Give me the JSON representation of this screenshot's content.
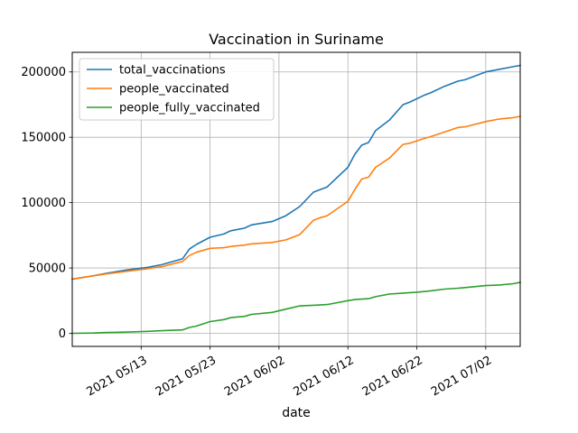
{
  "chart_data": {
    "type": "line",
    "title": "Vaccination in Suriname",
    "xlabel": "date",
    "ylabel": "",
    "grid": true,
    "legend_position": "upper left",
    "xlim": [
      "2021-05-03",
      "2021-07-07"
    ],
    "ylim": [
      -10000,
      215000
    ],
    "x_ticks": [
      {
        "date": "2021-05-13",
        "label": "2021 05/13"
      },
      {
        "date": "2021-05-23",
        "label": "2021 05/23"
      },
      {
        "date": "2021-06-02",
        "label": "2021 06/02"
      },
      {
        "date": "2021-06-12",
        "label": "2021 06/12"
      },
      {
        "date": "2021-06-22",
        "label": "2021 06/22"
      },
      {
        "date": "2021-07-02",
        "label": "2021 07/02"
      }
    ],
    "y_ticks": [
      {
        "value": 0,
        "label": "0"
      },
      {
        "value": 50000,
        "label": "50000"
      },
      {
        "value": 100000,
        "label": "100000"
      },
      {
        "value": 150000,
        "label": "150000"
      },
      {
        "value": 200000,
        "label": "200000"
      }
    ],
    "series": [
      {
        "name": "total_vaccinations",
        "color": "#1f77b4",
        "points": [
          [
            "2021-05-03",
            41500
          ],
          [
            "2021-05-06",
            44000
          ],
          [
            "2021-05-08",
            46000
          ],
          [
            "2021-05-11",
            48500
          ],
          [
            "2021-05-14",
            50500
          ],
          [
            "2021-05-16",
            52500
          ],
          [
            "2021-05-19",
            57000
          ],
          [
            "2021-05-20",
            64500
          ],
          [
            "2021-05-21",
            68000
          ],
          [
            "2021-05-23",
            73500
          ],
          [
            "2021-05-25",
            76000
          ],
          [
            "2021-05-26",
            78500
          ],
          [
            "2021-05-28",
            80500
          ],
          [
            "2021-05-29",
            83000
          ],
          [
            "2021-06-01",
            85500
          ],
          [
            "2021-06-03",
            90000
          ],
          [
            "2021-06-05",
            97000
          ],
          [
            "2021-06-07",
            108000
          ],
          [
            "2021-06-08",
            110000
          ],
          [
            "2021-06-09",
            112000
          ],
          [
            "2021-06-12",
            127000
          ],
          [
            "2021-06-13",
            137000
          ],
          [
            "2021-06-14",
            144000
          ],
          [
            "2021-06-15",
            146000
          ],
          [
            "2021-06-16",
            155000
          ],
          [
            "2021-06-18",
            163000
          ],
          [
            "2021-06-20",
            175000
          ],
          [
            "2021-06-21",
            177000
          ],
          [
            "2021-06-23",
            182000
          ],
          [
            "2021-06-24",
            184000
          ],
          [
            "2021-06-26",
            189000
          ],
          [
            "2021-06-28",
            193000
          ],
          [
            "2021-06-29",
            194000
          ],
          [
            "2021-07-02",
            200000
          ],
          [
            "2021-07-04",
            202000
          ],
          [
            "2021-07-06",
            204000
          ],
          [
            "2021-07-07",
            205000
          ]
        ]
      },
      {
        "name": "people_vaccinated",
        "color": "#ff7f0e",
        "points": [
          [
            "2021-05-03",
            41500
          ],
          [
            "2021-05-06",
            44000
          ],
          [
            "2021-05-08",
            45500
          ],
          [
            "2021-05-11",
            47500
          ],
          [
            "2021-05-14",
            49500
          ],
          [
            "2021-05-16",
            51000
          ],
          [
            "2021-05-19",
            55000
          ],
          [
            "2021-05-20",
            59500
          ],
          [
            "2021-05-21",
            62000
          ],
          [
            "2021-05-23",
            65000
          ],
          [
            "2021-05-25",
            65500
          ],
          [
            "2021-05-26",
            66500
          ],
          [
            "2021-05-28",
            67500
          ],
          [
            "2021-05-29",
            68500
          ],
          [
            "2021-06-01",
            69500
          ],
          [
            "2021-06-03",
            71500
          ],
          [
            "2021-06-05",
            75500
          ],
          [
            "2021-06-07",
            86500
          ],
          [
            "2021-06-08",
            88500
          ],
          [
            "2021-06-09",
            90000
          ],
          [
            "2021-06-12",
            101000
          ],
          [
            "2021-06-13",
            110000
          ],
          [
            "2021-06-14",
            118000
          ],
          [
            "2021-06-15",
            119500
          ],
          [
            "2021-06-16",
            127000
          ],
          [
            "2021-06-18",
            134000
          ],
          [
            "2021-06-20",
            144500
          ],
          [
            "2021-06-21",
            145500
          ],
          [
            "2021-06-23",
            149000
          ],
          [
            "2021-06-24",
            150500
          ],
          [
            "2021-06-26",
            154000
          ],
          [
            "2021-06-28",
            157500
          ],
          [
            "2021-06-29",
            158000
          ],
          [
            "2021-07-02",
            162000
          ],
          [
            "2021-07-04",
            164000
          ],
          [
            "2021-07-06",
            165000
          ],
          [
            "2021-07-07",
            166000
          ]
        ]
      },
      {
        "name": "people_fully_vaccinated",
        "color": "#2ca02c",
        "points": [
          [
            "2021-05-03",
            0
          ],
          [
            "2021-05-06",
            200
          ],
          [
            "2021-05-08",
            600
          ],
          [
            "2021-05-11",
            1000
          ],
          [
            "2021-05-14",
            1500
          ],
          [
            "2021-05-16",
            2000
          ],
          [
            "2021-05-19",
            2600
          ],
          [
            "2021-05-20",
            4500
          ],
          [
            "2021-05-21",
            5500
          ],
          [
            "2021-05-23",
            9000
          ],
          [
            "2021-05-25",
            10500
          ],
          [
            "2021-05-26",
            12000
          ],
          [
            "2021-05-28",
            13000
          ],
          [
            "2021-05-29",
            14500
          ],
          [
            "2021-06-01",
            16000
          ],
          [
            "2021-06-03",
            18500
          ],
          [
            "2021-06-05",
            21000
          ],
          [
            "2021-06-07",
            21500
          ],
          [
            "2021-06-09",
            22000
          ],
          [
            "2021-06-12",
            25000
          ],
          [
            "2021-06-13",
            25800
          ],
          [
            "2021-06-14",
            26200
          ],
          [
            "2021-06-15",
            26500
          ],
          [
            "2021-06-16",
            28000
          ],
          [
            "2021-06-18",
            30000
          ],
          [
            "2021-06-20",
            30800
          ],
          [
            "2021-06-22",
            31500
          ],
          [
            "2021-06-24",
            32500
          ],
          [
            "2021-06-26",
            33800
          ],
          [
            "2021-06-28",
            34500
          ],
          [
            "2021-06-30",
            35500
          ],
          [
            "2021-07-02",
            36500
          ],
          [
            "2021-07-04",
            37000
          ],
          [
            "2021-07-06",
            38000
          ],
          [
            "2021-07-07",
            39000
          ]
        ]
      }
    ]
  }
}
